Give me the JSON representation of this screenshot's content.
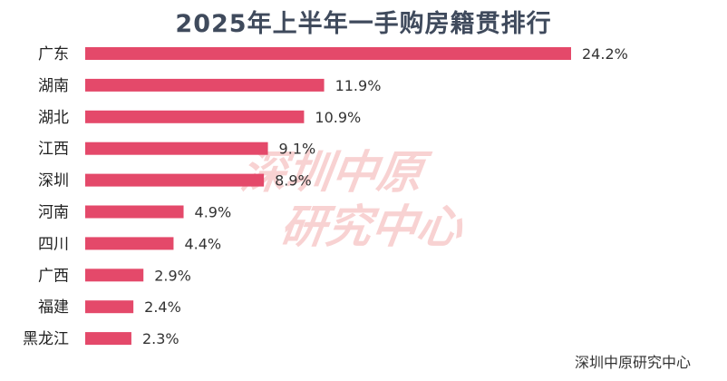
{
  "chart_data": {
    "type": "bar",
    "orientation": "horizontal",
    "title": "2025年上半年一手购房籍贯排行",
    "categories": [
      "广东",
      "湖南",
      "湖北",
      "江西",
      "深圳",
      "河南",
      "四川",
      "广西",
      "福建",
      "黑龙江"
    ],
    "values": [
      24.2,
      11.9,
      10.9,
      9.1,
      8.9,
      4.9,
      4.4,
      2.9,
      2.4,
      2.3
    ],
    "value_labels": [
      "24.2%",
      "11.9%",
      "10.9%",
      "9.1%",
      "8.9%",
      "4.9%",
      "4.4%",
      "2.9%",
      "2.4%",
      "2.3%"
    ],
    "unit": "%",
    "xlim": [
      0,
      24.2
    ],
    "grid": false,
    "legend": "none",
    "bar_color": "#e4496a"
  },
  "watermark": {
    "line1": "深圳中原",
    "line2": "研究中心"
  },
  "source": "深圳中原研究中心"
}
